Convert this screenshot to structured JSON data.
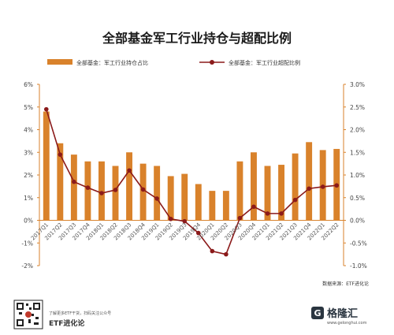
{
  "chart_data": {
    "type": "bar+line",
    "title": "全部基金军工行业持仓与超配比例",
    "categories": [
      "2017Q1",
      "2017Q2",
      "2017Q3",
      "2017Q4",
      "2018Q1",
      "2018Q2",
      "2018Q3",
      "2018Q4",
      "2019Q1",
      "2019Q2",
      "2019Q3",
      "2019Q4",
      "2020Q1",
      "2020Q2",
      "2020Q3",
      "2020Q4",
      "2021Q1",
      "2021Q2",
      "2021Q3",
      "2021Q4",
      "2022Q1",
      "2022Q2"
    ],
    "series": [
      {
        "name": "全部基金：军工行业持仓占比",
        "type": "bar",
        "axis": "left",
        "color": "#d9822b",
        "values": [
          4.8,
          3.4,
          2.9,
          2.6,
          2.6,
          2.4,
          3.0,
          2.5,
          2.4,
          1.95,
          2.05,
          1.6,
          1.3,
          1.3,
          2.6,
          3.0,
          2.4,
          2.45,
          2.95,
          3.45,
          3.1,
          3.15
        ]
      },
      {
        "name": "全部基金：军工行业超配比例",
        "type": "line",
        "axis": "right",
        "color": "#8b1a1a",
        "values": [
          2.45,
          1.45,
          0.85,
          0.72,
          0.6,
          0.67,
          1.1,
          0.68,
          0.48,
          0.03,
          -0.02,
          -0.28,
          -0.68,
          -0.75,
          0.05,
          0.3,
          0.15,
          0.15,
          0.45,
          0.7,
          0.74,
          0.77
        ]
      }
    ],
    "y_left": {
      "min": -2,
      "max": 6,
      "step": 1,
      "ticks": [
        "-2%",
        "-1%",
        "0%",
        "1%",
        "2%",
        "3%",
        "4%",
        "5%",
        "6%"
      ]
    },
    "y_right": {
      "min": -1.0,
      "max": 3.0,
      "step": 0.5,
      "ticks": [
        "-1.0%",
        "-0.5%",
        "0.0%",
        "0.5%",
        "1.0%",
        "1.5%",
        "2.0%",
        "2.5%",
        "3.0%"
      ]
    },
    "grid": false,
    "legend_position": "top"
  },
  "source_note": "数据来源：ETF进化论",
  "footer": {
    "qr_caption": "了解更多ETF干货，扫码关注公众号",
    "brand_name": "ETF进化论",
    "logo_text": "格隆汇",
    "logo_sub": "www.gelonghui.com"
  },
  "colors": {
    "bar": "#d9822b",
    "line": "#8b1a1a",
    "axis": "#d9822b"
  }
}
